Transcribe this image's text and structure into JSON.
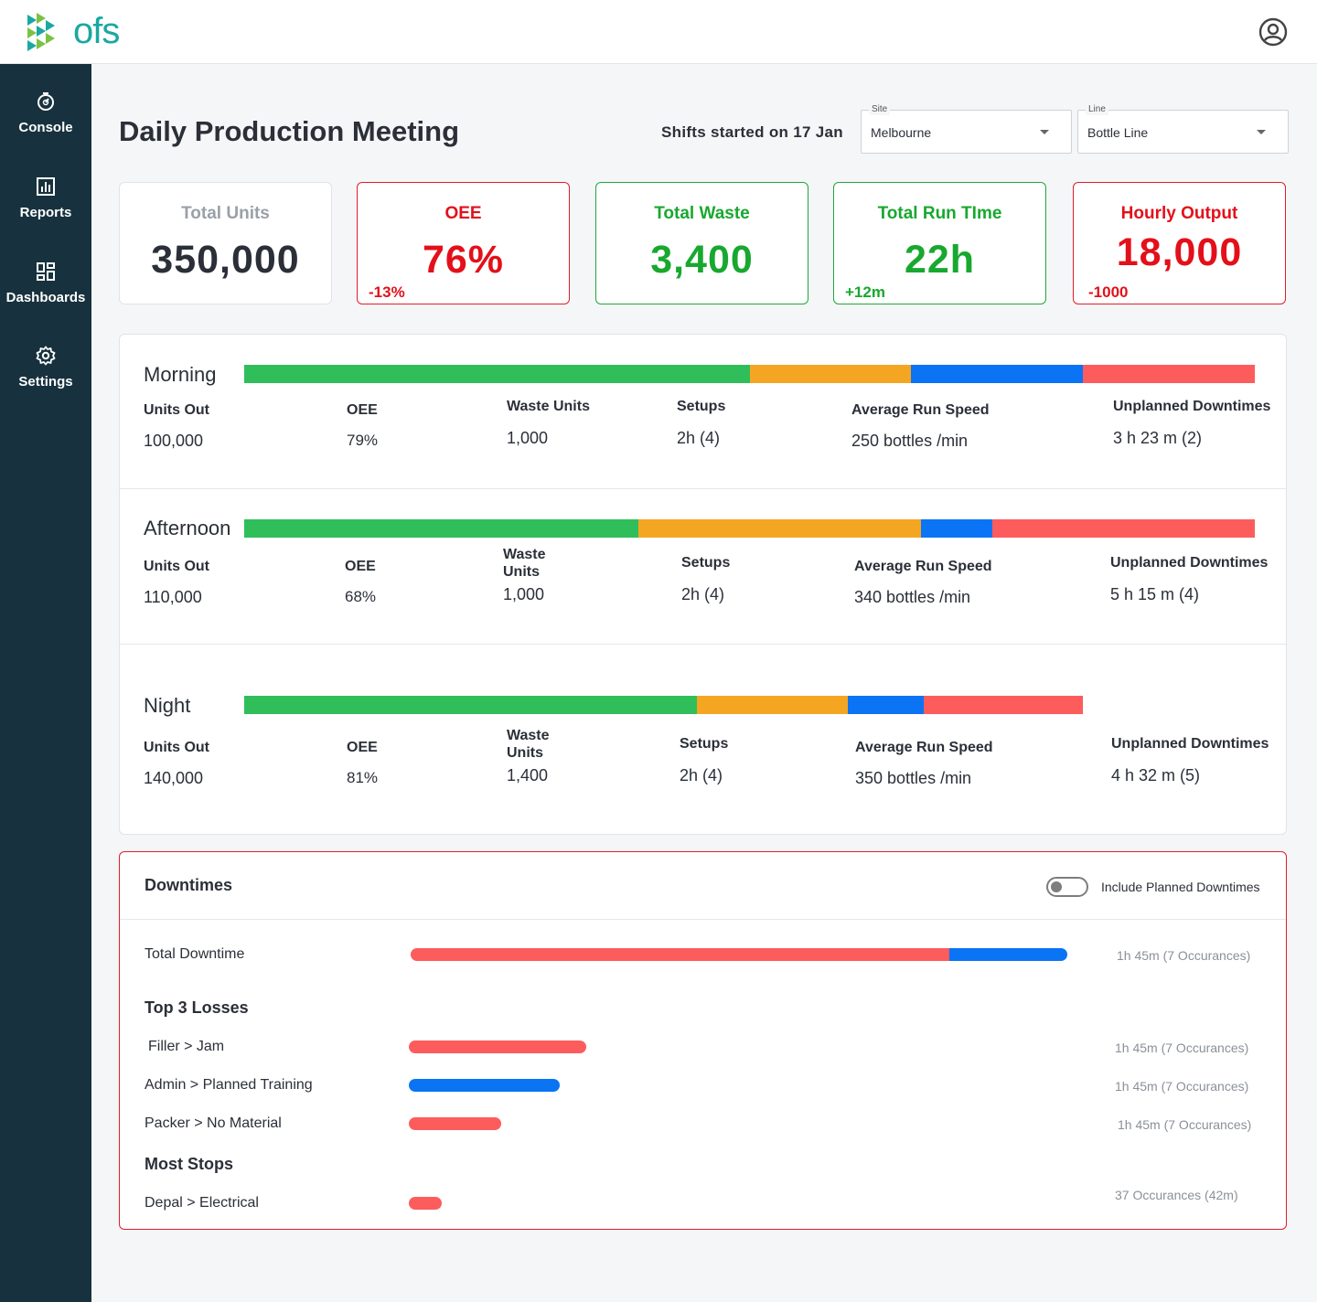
{
  "app": {
    "logo_text": "ofs"
  },
  "sidebar": {
    "items": [
      {
        "label": "Console",
        "icon": "stopwatch-icon"
      },
      {
        "label": "Reports",
        "icon": "bar-chart-icon"
      },
      {
        "label": "Dashboards",
        "icon": "dashboard-grid-icon"
      },
      {
        "label": "Settings",
        "icon": "gear-icon"
      }
    ]
  },
  "header": {
    "title": "Daily Production Meeting",
    "shift_start": "Shifts started on 17 Jan",
    "site": {
      "legend": "Site",
      "value": "Melbourne"
    },
    "line": {
      "legend": "Line",
      "value": "Bottle Line"
    }
  },
  "kpis": [
    {
      "title": "Total Units",
      "value": "350,000",
      "delta": "",
      "status": "neutral"
    },
    {
      "title": "OEE",
      "value": "76%",
      "delta": "-13%",
      "status": "bad"
    },
    {
      "title": "Total Waste",
      "value": "3,400",
      "delta": "",
      "status": "good"
    },
    {
      "title": "Total Run TIme",
      "value": "22h",
      "delta": "+12m",
      "status": "good"
    },
    {
      "title": "Hourly Output",
      "value": "18,000",
      "delta": "-1000",
      "status": "bad"
    }
  ],
  "colors": {
    "green": "#2fbe5a",
    "orange": "#f4a623",
    "blue": "#0a74f5",
    "red": "#fd5c5c",
    "text_red": "#e3101a",
    "text_green": "#18a82f"
  },
  "metric_labels": {
    "units_out": "Units Out",
    "oee": "OEE",
    "waste": "Waste Units",
    "setups": "Setups",
    "run_speed": "Average Run Speed",
    "unplanned": "Unplanned Downtimes"
  },
  "shifts": [
    {
      "name": "Morning",
      "bar_segments": [
        0.5,
        0.16,
        0.17,
        0.17
      ],
      "bar_fraction": 1.0,
      "units_out": "100,000",
      "oee": "79%",
      "waste": "1,000",
      "setups": "2h (4)",
      "run_speed": "250 bottles /min",
      "unplanned": "3 h 23 m (2)"
    },
    {
      "name": "Afternoon",
      "bar_segments": [
        0.39,
        0.28,
        0.07,
        0.26
      ],
      "bar_fraction": 1.0,
      "units_out": "110,000",
      "oee": "68%",
      "waste": "1,000",
      "setups": "2h (4)",
      "run_speed": "340 bottles /min",
      "unplanned": "5 h 15 m (4)"
    },
    {
      "name": "Night",
      "bar_segments": [
        0.54,
        0.18,
        0.09,
        0.19
      ],
      "bar_fraction": 0.83,
      "units_out": "140,000",
      "oee": "81%",
      "waste": "1,400",
      "setups": "2h (4)",
      "run_speed": "350 bottles /min",
      "unplanned": "4 h 32 m (5)"
    }
  ],
  "downtimes": {
    "title": "Downtimes",
    "toggle_label": "Include Planned Downtimes",
    "toggle_on": false,
    "total": {
      "label": "Total Downtime",
      "meta": "1h 45m (7 Occurances)",
      "fraction": 1.0,
      "split": [
        0.82,
        0.18
      ]
    },
    "top_losses_title": "Top 3 Losses",
    "top_losses": [
      {
        "label": "Filler > Jam",
        "meta": "1h 45m (7 Occurances)",
        "fraction": 0.27,
        "color": "red"
      },
      {
        "label": "Admin > Planned Training",
        "meta": "1h 45m (7 Occurances)",
        "fraction": 0.23,
        "color": "blue"
      },
      {
        "label": "Packer > No Material",
        "meta": "1h 45m (7 Occurances)",
        "fraction": 0.14,
        "color": "red"
      }
    ],
    "most_stops_title": "Most Stops",
    "most_stops": [
      {
        "label": "Depal > Electrical",
        "meta": "37 Occurances (42m)",
        "fraction": 0.05,
        "color": "red"
      }
    ]
  }
}
